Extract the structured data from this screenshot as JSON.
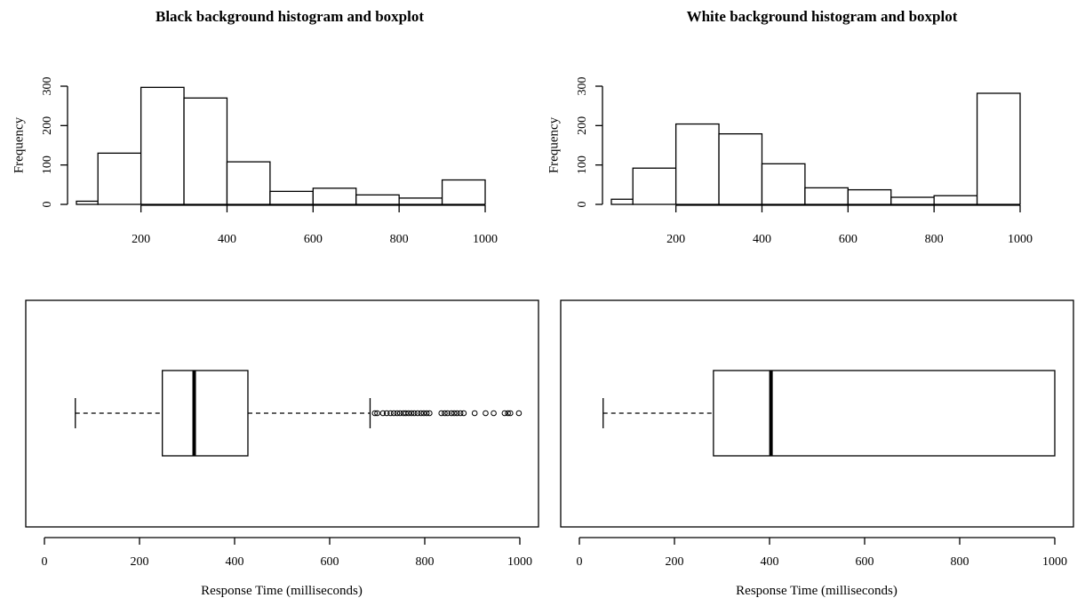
{
  "chart_data": [
    {
      "type": "histogram",
      "panel": "black",
      "title": "Black background histogram and boxplot",
      "ylabel": "Frequency",
      "xlim": [
        50,
        1000
      ],
      "ylim": [
        0,
        300
      ],
      "xticks": [
        200,
        400,
        600,
        800,
        1000
      ],
      "yticks": [
        0,
        100,
        200,
        300
      ],
      "bins": [
        {
          "x0": 50,
          "x1": 100,
          "value": 8
        },
        {
          "x0": 100,
          "x1": 200,
          "value": 130
        },
        {
          "x0": 200,
          "x1": 300,
          "value": 297
        },
        {
          "x0": 300,
          "x1": 400,
          "value": 270
        },
        {
          "x0": 400,
          "x1": 500,
          "value": 108
        },
        {
          "x0": 500,
          "x1": 600,
          "value": 33
        },
        {
          "x0": 600,
          "x1": 700,
          "value": 41
        },
        {
          "x0": 700,
          "x1": 800,
          "value": 24
        },
        {
          "x0": 800,
          "x1": 900,
          "value": 16
        },
        {
          "x0": 900,
          "x1": 1000,
          "value": 62
        }
      ]
    },
    {
      "type": "histogram",
      "panel": "white",
      "title": "White background histogram and boxplot",
      "ylabel": "Frequency",
      "xlim": [
        50,
        1000
      ],
      "ylim": [
        0,
        300
      ],
      "xticks": [
        200,
        400,
        600,
        800,
        1000
      ],
      "yticks": [
        0,
        100,
        200,
        300
      ],
      "bins": [
        {
          "x0": 50,
          "x1": 100,
          "value": 13
        },
        {
          "x0": 100,
          "x1": 200,
          "value": 92
        },
        {
          "x0": 200,
          "x1": 300,
          "value": 204
        },
        {
          "x0": 300,
          "x1": 400,
          "value": 179
        },
        {
          "x0": 400,
          "x1": 500,
          "value": 103
        },
        {
          "x0": 500,
          "x1": 600,
          "value": 42
        },
        {
          "x0": 600,
          "x1": 700,
          "value": 37
        },
        {
          "x0": 700,
          "x1": 800,
          "value": 18
        },
        {
          "x0": 800,
          "x1": 900,
          "value": 22
        },
        {
          "x0": 900,
          "x1": 1000,
          "value": 282
        }
      ]
    },
    {
      "type": "boxplot",
      "panel": "black",
      "xlabel": "Response Time (milliseconds)",
      "xlim": [
        0,
        1000
      ],
      "xticks": [
        0,
        200,
        400,
        600,
        800,
        1000
      ],
      "whisker_low": 65,
      "q1": 248,
      "median": 315,
      "q3": 428,
      "whisker_high": 685,
      "outliers": [
        695,
        700,
        712,
        720,
        728,
        735,
        742,
        748,
        755,
        760,
        766,
        772,
        778,
        785,
        792,
        798,
        804,
        810,
        835,
        842,
        848,
        856,
        862,
        868,
        875,
        882,
        905,
        928,
        945,
        968,
        975,
        980,
        998
      ]
    },
    {
      "type": "boxplot",
      "panel": "white",
      "xlabel": "Response Time (milliseconds)",
      "xlim": [
        0,
        1000
      ],
      "xticks": [
        0,
        200,
        400,
        600,
        800,
        1000
      ],
      "whisker_low": 50,
      "q1": 282,
      "median": 403,
      "q3": 1000,
      "whisker_high": 1000,
      "outliers": []
    }
  ]
}
